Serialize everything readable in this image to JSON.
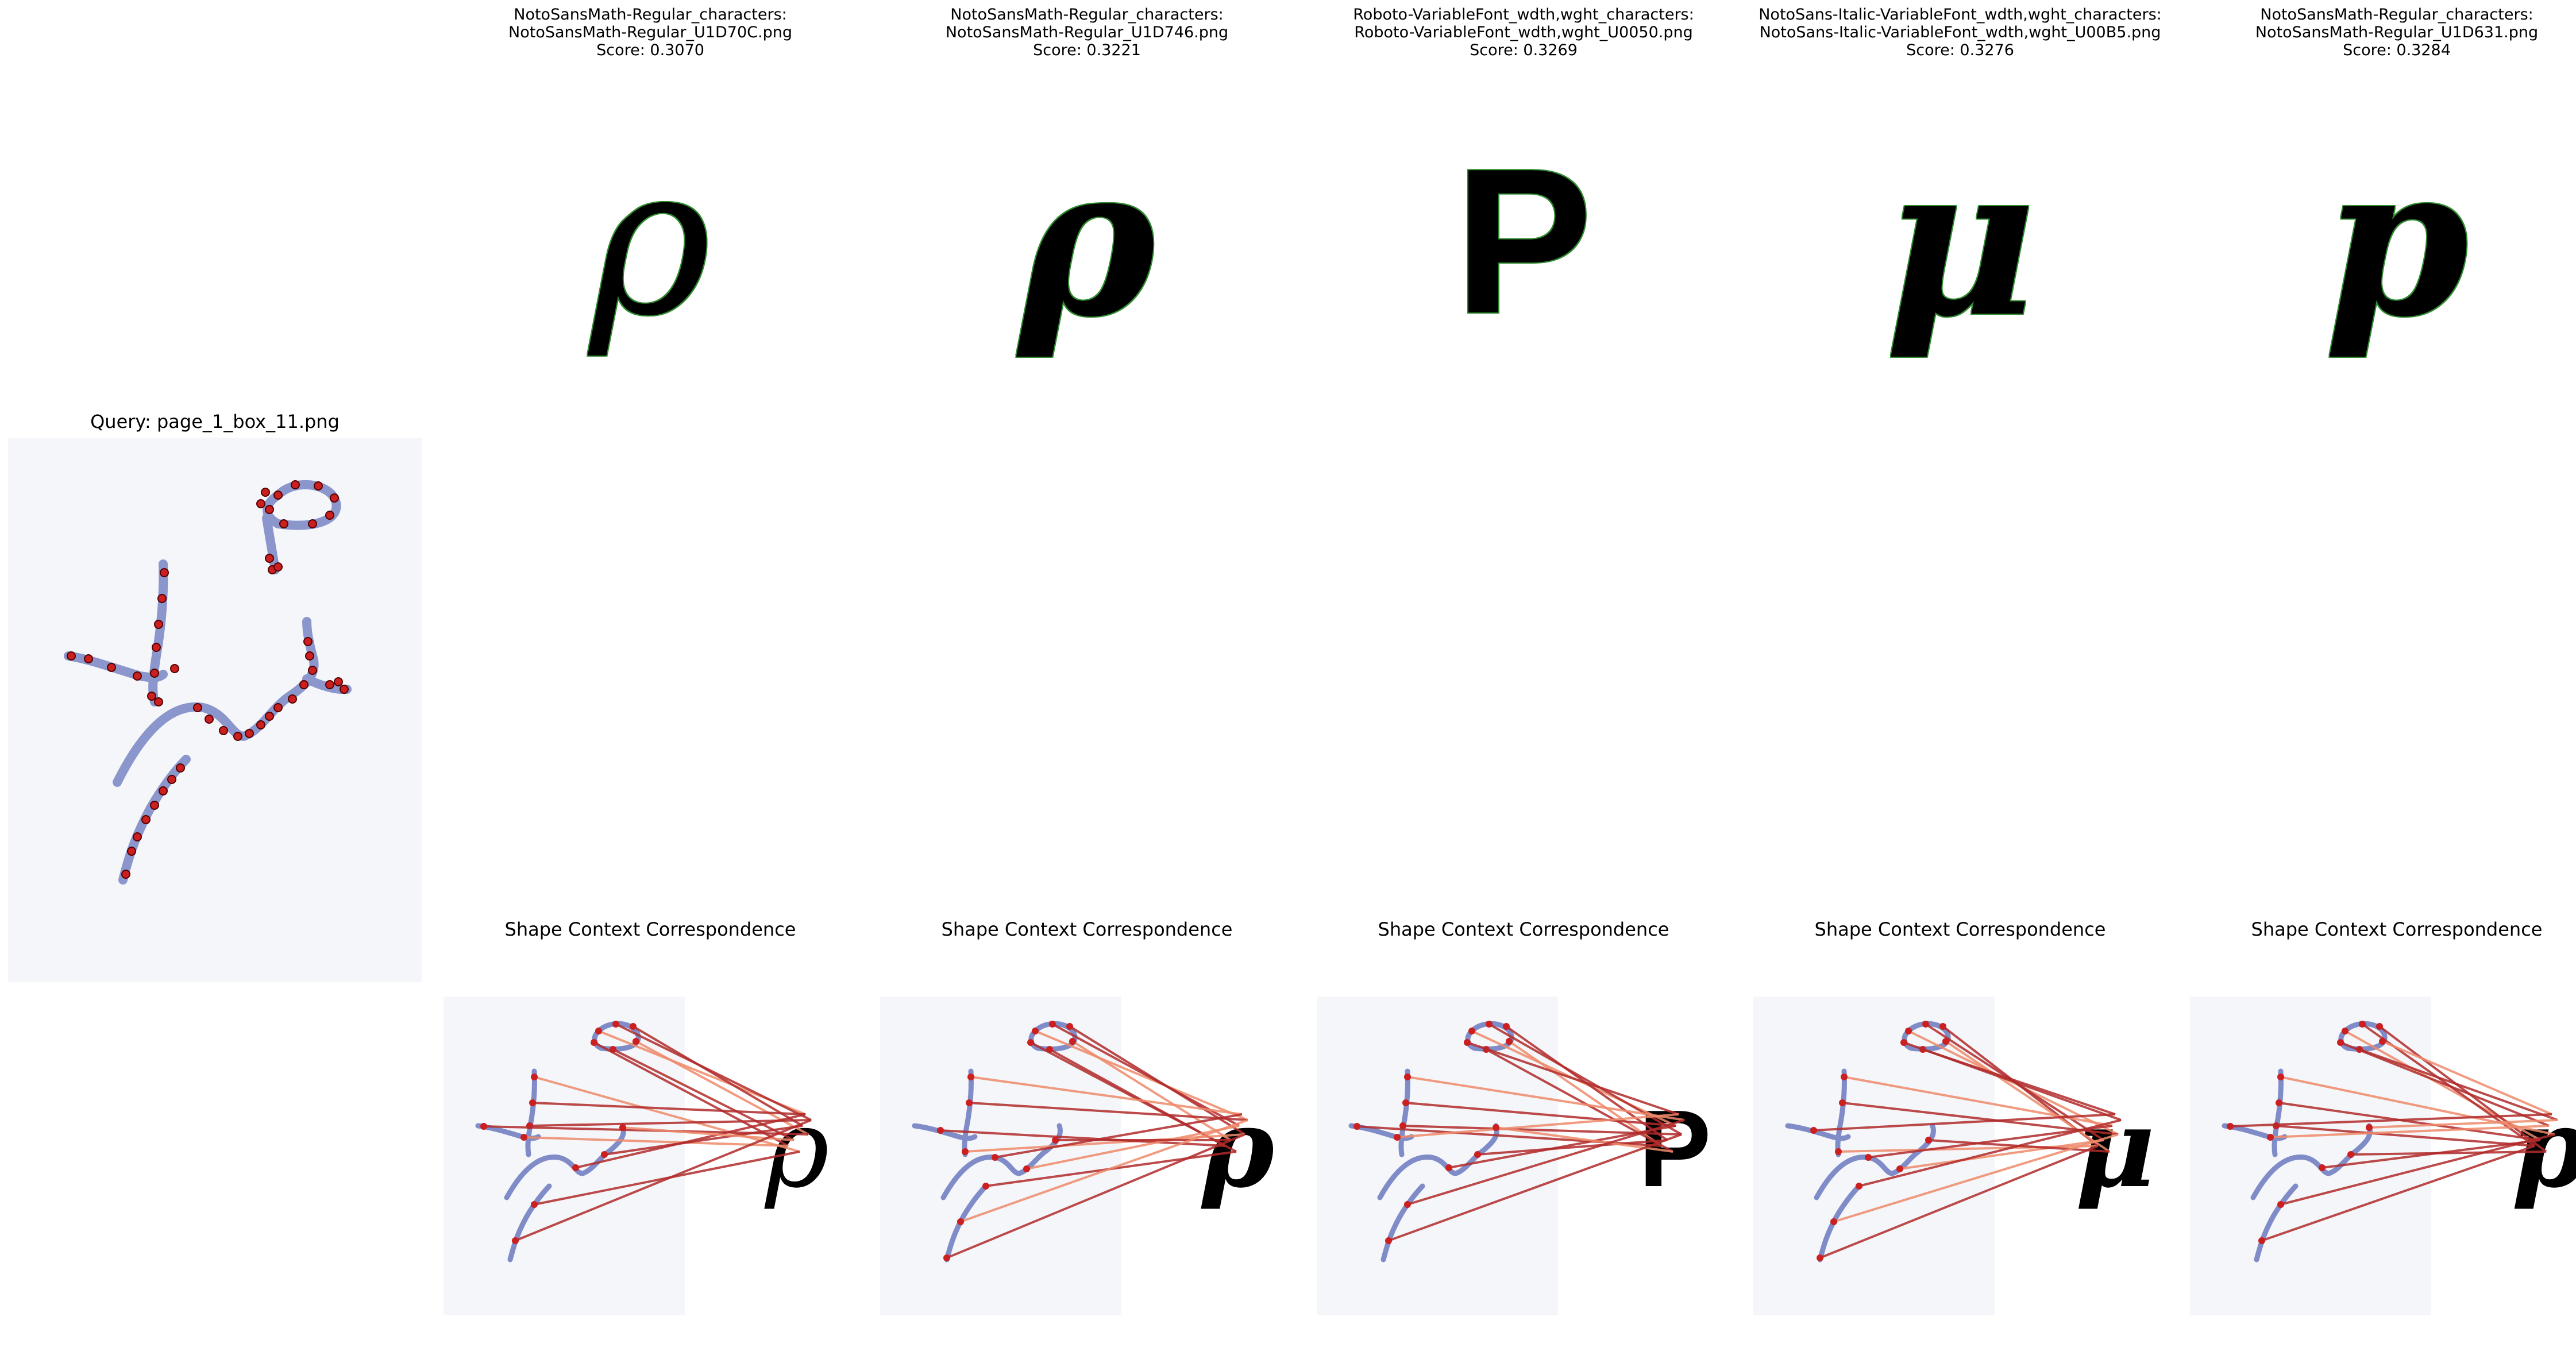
{
  "query": {
    "title": "Query: page_1_box_11.png"
  },
  "colors": {
    "ink": "#7f8cc8",
    "query_points": "#cc1f1f",
    "candidate_points": "#2e8b2e",
    "line_dark": "#b22b2b",
    "line_light": "#ef8a6a"
  },
  "candidates": [
    {
      "line1": "NotoSansMath-Regular_characters:",
      "line2": "NotoSansMath-Regular_U1D70C.png",
      "score": "Score: 0.3070",
      "glyph": "ρ",
      "glyph_style": "italic",
      "corr_title": "Shape Context Correspondence"
    },
    {
      "line1": "NotoSansMath-Regular_characters:",
      "line2": "NotoSansMath-Regular_U1D746.png",
      "score": "Score: 0.3221",
      "glyph": "ρ",
      "glyph_style": "bold-italic",
      "corr_title": "Shape Context Correspondence"
    },
    {
      "line1": "Roboto-VariableFont_wdth,wght_characters:",
      "line2": "Roboto-VariableFont_wdth,wght_U0050.png",
      "score": "Score: 0.3269",
      "glyph": "P",
      "glyph_style": "bold",
      "corr_title": "Shape Context Correspondence"
    },
    {
      "line1": "NotoSans-Italic-VariableFont_wdth,wght_characters:",
      "line2": "NotoSans-Italic-VariableFont_wdth,wght_U00B5.png",
      "score": "Score: 0.3276",
      "glyph": "μ",
      "glyph_style": "bold-italic",
      "corr_title": "Shape Context Correspondence"
    },
    {
      "line1": "NotoSansMath-Regular_characters:",
      "line2": "NotoSansMath-Regular_U1D631.png",
      "score": "Score: 0.3284",
      "glyph": "p",
      "glyph_style": "bold-italic",
      "corr_title": "Shape Context Correspondence"
    }
  ]
}
